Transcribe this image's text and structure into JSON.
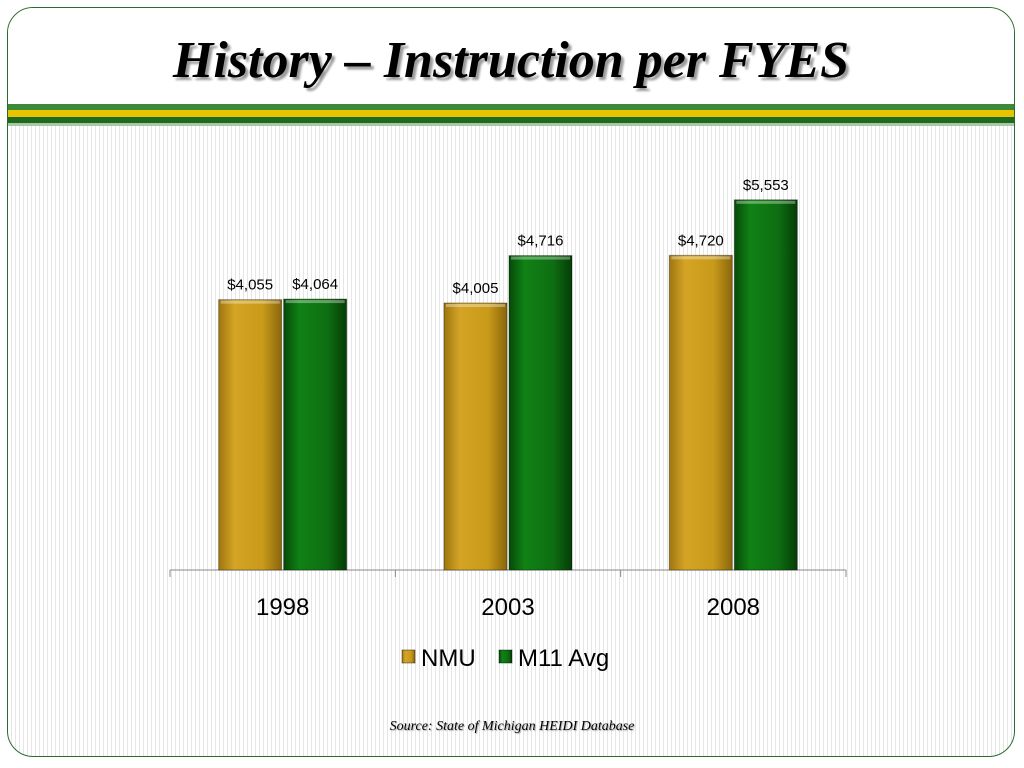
{
  "title": "History – Instruction per FYES",
  "source": "Source:  State of Michigan HEIDI Database",
  "colors": {
    "nmu": "#c99a1a",
    "m11": "#0e6e12"
  },
  "chart_data": {
    "type": "bar",
    "categories": [
      "1998",
      "2003",
      "2008"
    ],
    "series": [
      {
        "name": "NMU",
        "values": [
          4055,
          4005,
          4720
        ],
        "labels": [
          "$4,055",
          "$4,005",
          "$4,720"
        ]
      },
      {
        "name": "M11 Avg",
        "values": [
          4064,
          4716,
          5553
        ],
        "labels": [
          "$4,064",
          "$4,716",
          "$5,553"
        ]
      }
    ],
    "ylim": [
      0,
      6000
    ],
    "grid": false,
    "legend": "bottom",
    "data_labels": true
  }
}
